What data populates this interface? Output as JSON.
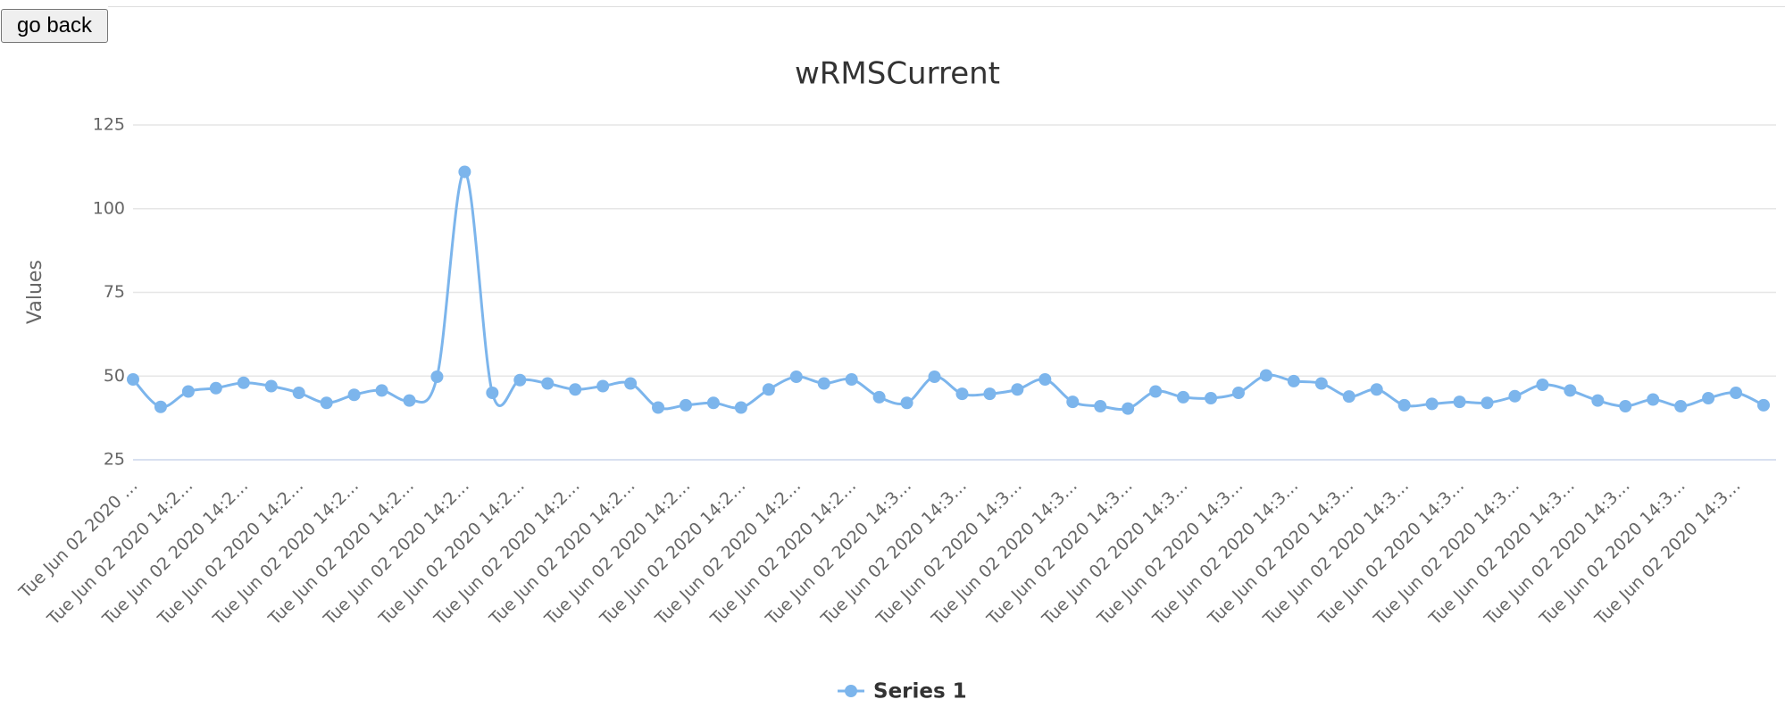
{
  "button": "go back",
  "chart_data": {
    "type": "line",
    "title": "wRMSCurrent",
    "y_label": "Values",
    "categories": [
      "Tue Jun 02 2020 …",
      null,
      "Tue Jun 02 2020 14:2…",
      null,
      "Tue Jun 02 2020 14:2…",
      null,
      "Tue Jun 02 2020 14:2…",
      null,
      "Tue Jun 02 2020 14:2…",
      null,
      "Tue Jun 02 2020 14:2…",
      null,
      "Tue Jun 02 2020 14:2…",
      null,
      "Tue Jun 02 2020 14:2…",
      null,
      "Tue Jun 02 2020 14:2…",
      null,
      "Tue Jun 02 2020 14:2…",
      null,
      "Tue Jun 02 2020 14:2…",
      null,
      "Tue Jun 02 2020 14:2…",
      null,
      "Tue Jun 02 2020 14:2…",
      null,
      "Tue Jun 02 2020 14:2…",
      null,
      "Tue Jun 02 2020 14:3…",
      null,
      "Tue Jun 02 2020 14:3…",
      null,
      "Tue Jun 02 2020 14:3…",
      null,
      "Tue Jun 02 2020 14:3…",
      null,
      "Tue Jun 02 2020 14:3…",
      null,
      "Tue Jun 02 2020 14:3…",
      null,
      "Tue Jun 02 2020 14:3…",
      null,
      "Tue Jun 02 2020 14:3…",
      null,
      "Tue Jun 02 2020 14:3…",
      null,
      "Tue Jun 02 2020 14:3…",
      null,
      "Tue Jun 02 2020 14:3…",
      null,
      "Tue Jun 02 2020 14:3…",
      null,
      "Tue Jun 02 2020 14:3…",
      null,
      "Tue Jun 02 2020 14:3…",
      null,
      "Tue Jun 02 2020 14:3…",
      null,
      "Tue Jun 02 2020 14:3…",
      null
    ],
    "series": [
      {
        "name": "Series 1",
        "color": "#7cb5ec",
        "values": [
          49,
          40.8,
          45.4,
          46.4,
          48,
          47,
          45,
          42,
          44.4,
          45.7,
          42.7,
          49.8,
          111,
          45,
          48.8,
          47.8,
          46,
          47,
          47.8,
          40.6,
          41.3,
          42,
          40.6,
          46,
          49.8,
          47.8,
          49,
          43.7,
          42,
          49.8,
          44.7,
          44.7,
          46,
          49,
          42.3,
          41,
          40.3,
          45.4,
          43.7,
          43.4,
          45,
          50.2,
          48.5,
          47.8,
          43.9,
          46,
          41.3,
          41.7,
          42.3,
          42,
          44,
          47.4,
          45.7,
          42.7,
          41,
          43,
          41,
          43.4,
          45,
          41.3
        ]
      }
    ],
    "ylim": [
      25,
      125
    ],
    "yticks": [
      25,
      50,
      75,
      100,
      125
    ],
    "grid": true
  }
}
